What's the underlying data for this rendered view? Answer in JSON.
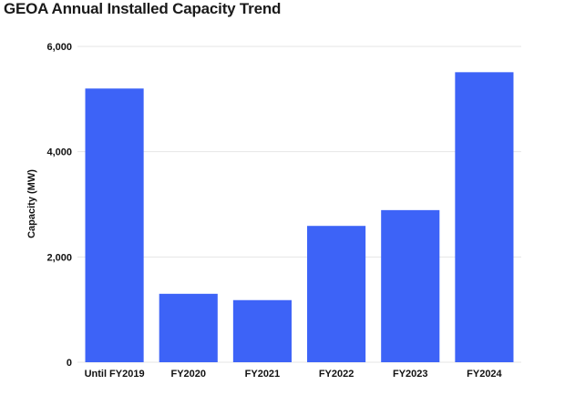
{
  "chart_data": {
    "type": "bar",
    "title": "GEOA Annual Installed Capacity Trend",
    "xlabel": "",
    "ylabel": "Capacity (MW)",
    "categories": [
      "Until FY2019",
      "FY2020",
      "FY2021",
      "FY2022",
      "FY2023",
      "FY2024"
    ],
    "values": [
      5200,
      1300,
      1180,
      2590,
      2890,
      5510
    ],
    "ylim": [
      0,
      6000
    ],
    "yticks": [
      0,
      2000,
      4000,
      6000
    ],
    "ytick_labels": [
      "0",
      "2,000",
      "4,000",
      "6,000"
    ],
    "grid": true,
    "bar_color": "#3d63f7",
    "grid_color": "#e6e6e6"
  }
}
